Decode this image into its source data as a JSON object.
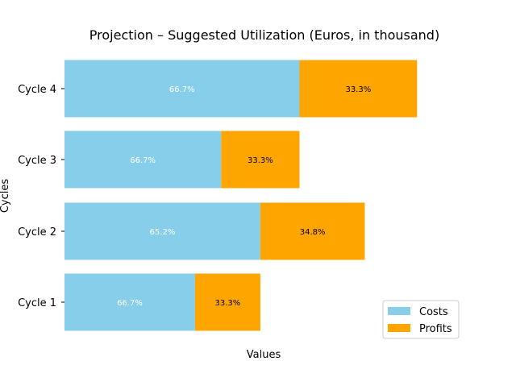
{
  "chart_data": {
    "type": "bar",
    "orientation": "horizontal",
    "stacked": true,
    "title": "Projection – Suggested Utilization (Euros, in thousand)",
    "xlabel": "Values",
    "ylabel": "Cycles",
    "categories": [
      "Cycle 1",
      "Cycle 2",
      "Cycle 3",
      "Cycle 4"
    ],
    "xlim": [
      0,
      310
    ],
    "series": [
      {
        "name": "Costs",
        "color": "#87CEEB",
        "label_color": "#ffffff",
        "values": [
          100,
          150,
          120,
          180
        ],
        "labels": [
          "66.7%",
          "65.2%",
          "66.7%",
          "66.7%"
        ]
      },
      {
        "name": "Profits",
        "color": "#FFA500",
        "label_color": "#000000",
        "values": [
          50,
          80,
          60,
          90
        ],
        "labels": [
          "33.3%",
          "34.8%",
          "33.3%",
          "33.3%"
        ]
      }
    ],
    "legend": {
      "position": "lower-right"
    },
    "x_ticks_visible": false,
    "grid": false
  }
}
